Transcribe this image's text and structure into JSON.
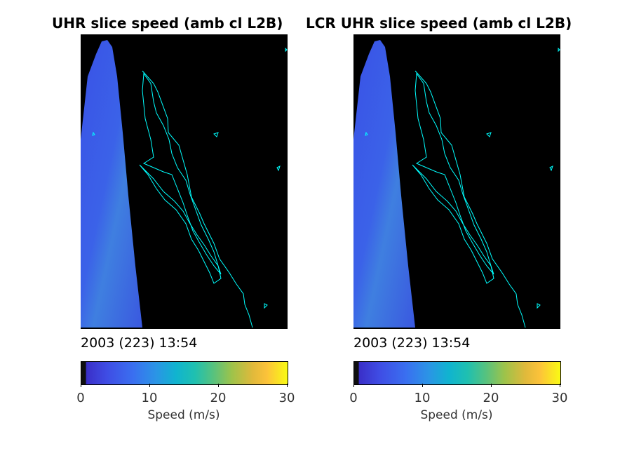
{
  "panels": [
    {
      "title": "UHR slice speed (amb cl L2B)",
      "timestamp": "2003 (223) 13:54",
      "colorbar": {
        "label": "Speed (m/s)",
        "ticks": [
          "0",
          "10",
          "20",
          "30"
        ],
        "min": 0,
        "max": 30
      }
    },
    {
      "title": "LCR UHR slice speed (amb cl L2B)",
      "timestamp": "2003 (223) 13:54",
      "colorbar": {
        "label": "Speed (m/s)",
        "ticks": [
          "0",
          "10",
          "20",
          "30"
        ],
        "min": 0,
        "max": 30
      }
    }
  ],
  "colors": {
    "map_background": "#000000",
    "coastline": "#00ffff",
    "swath_low": "#3a50e0",
    "swath_high": "#2fa0c8"
  }
}
